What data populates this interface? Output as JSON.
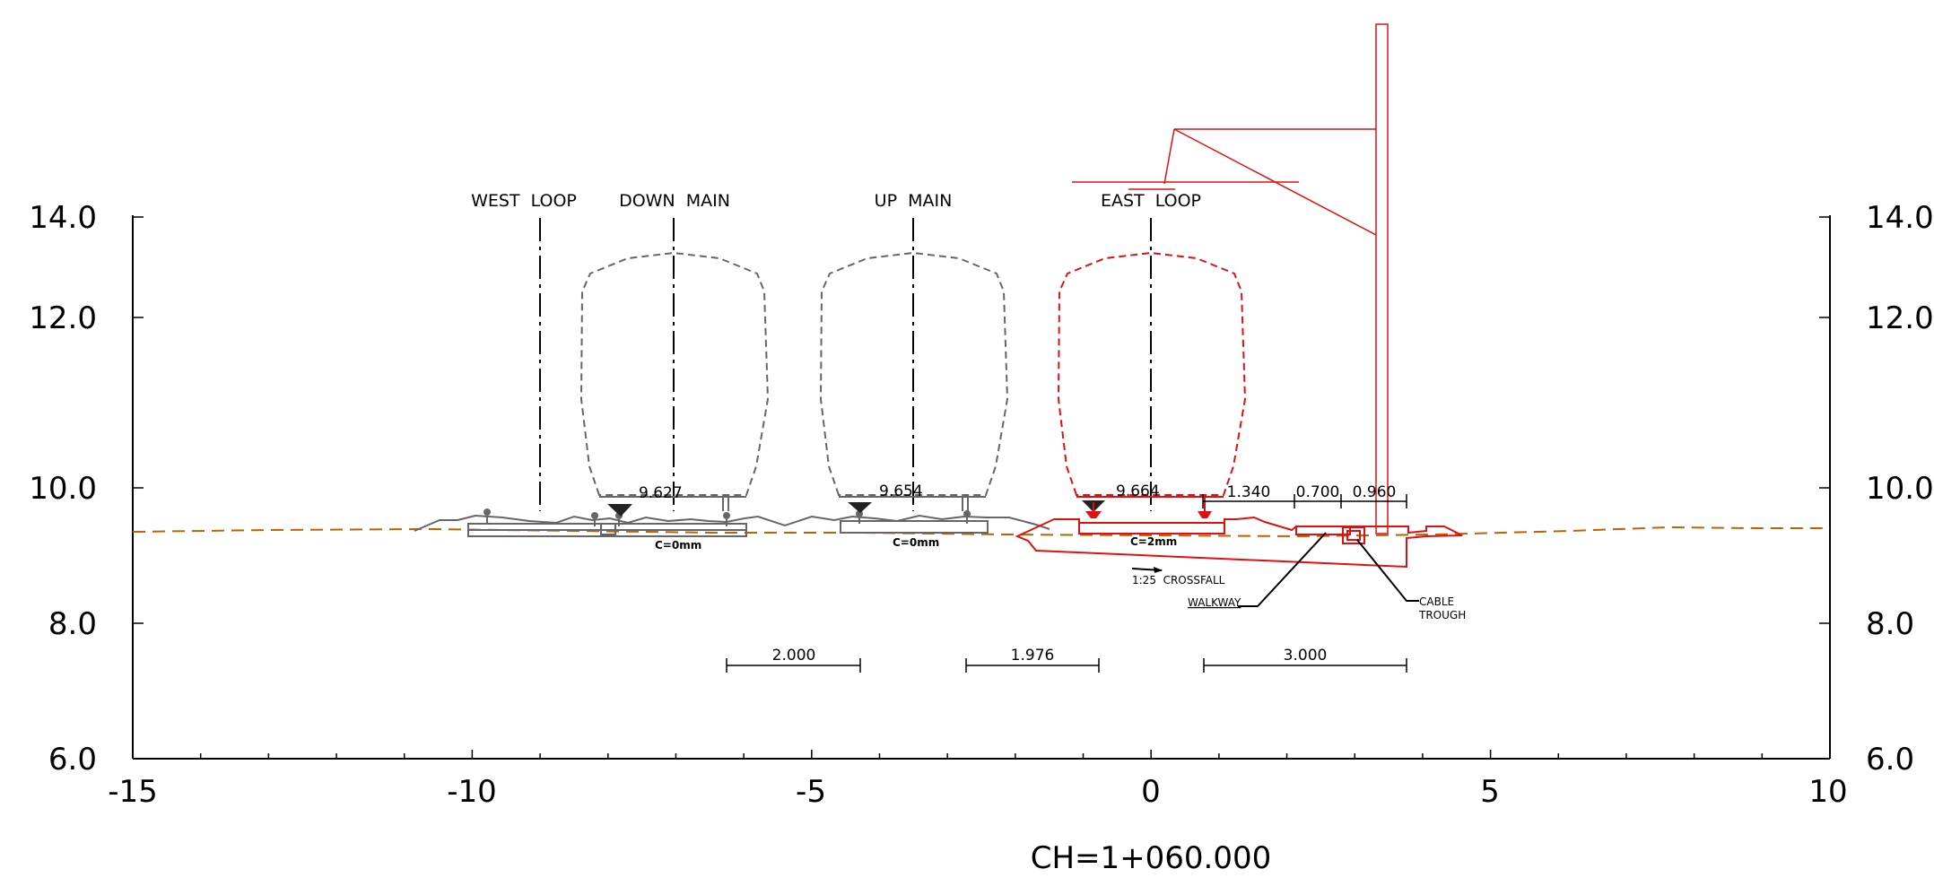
{
  "figure": {
    "axes": {
      "x_ticks": [
        "-15",
        "-10",
        "-5",
        "0",
        "5",
        "10"
      ],
      "y_ticks": [
        "6.0",
        "8.0",
        "10.0",
        "12.0",
        "14.0"
      ]
    },
    "chainage": "CH=1+060.000",
    "tracks": [
      {
        "name": "WEST  LOOP",
        "level": "9.627",
        "cant": "C=0mm"
      },
      {
        "name": "DOWN  MAIN",
        "level": "9.654",
        "cant": "C=0mm"
      },
      {
        "name": "UP  MAIN",
        "level": "9.664",
        "cant": "C=2mm"
      },
      {
        "name": "EAST  LOOP"
      }
    ],
    "spacings": [
      "2.000",
      "1.976",
      "3.000"
    ],
    "offsets": [
      "1.340",
      "0.700",
      "0.960"
    ],
    "annotations": {
      "crossfall": "1:25  CROSSFALL",
      "walkway": "WALKWAY",
      "cable_1": "CABLE",
      "cable_2": "TROUGH"
    },
    "colors": {
      "existing": "#666666",
      "proposed": "#e01010",
      "ground": "#c06000"
    }
  }
}
